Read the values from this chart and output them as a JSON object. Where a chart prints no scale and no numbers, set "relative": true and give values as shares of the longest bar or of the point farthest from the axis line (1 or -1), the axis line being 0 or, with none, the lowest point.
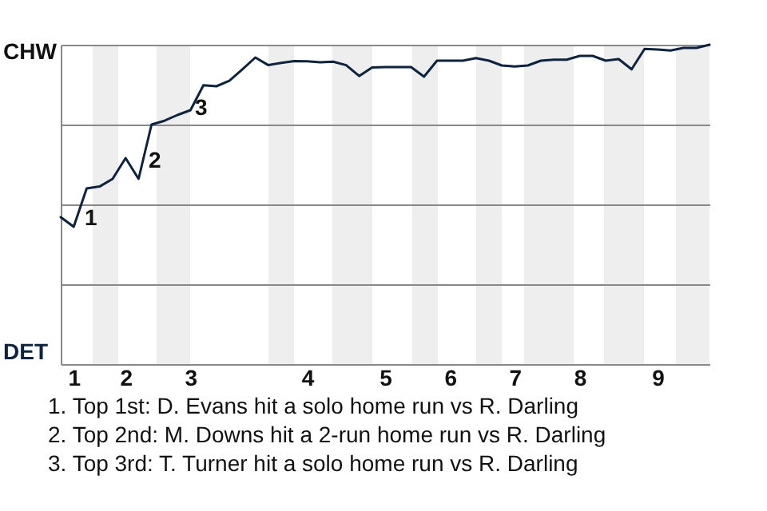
{
  "chart_data": {
    "type": "line",
    "relative": true,
    "categories": [
      null,
      "1",
      null,
      null,
      null,
      "2",
      null,
      null,
      null,
      null,
      "3",
      null,
      null,
      null,
      null,
      null,
      null,
      null,
      null,
      "4",
      null,
      null,
      null,
      null,
      null,
      "5",
      null,
      null,
      null,
      null,
      "6",
      null,
      null,
      null,
      null,
      "7",
      null,
      null,
      null,
      null,
      "8",
      null,
      null,
      null,
      null,
      null,
      "9",
      null,
      null,
      null,
      null
    ],
    "series": [
      {
        "color": "#0d2340",
        "values": [
          0.46,
          0.43,
          0.55,
          0.556,
          0.58,
          0.645,
          0.58,
          0.75,
          0.762,
          0.78,
          0.795,
          0.873,
          0.87,
          0.887,
          0.923,
          0.96,
          0.936,
          0.943,
          0.949,
          0.948,
          0.945,
          0.947,
          0.936,
          0.902,
          0.929,
          0.93,
          0.93,
          0.93,
          0.9,
          0.95,
          0.95,
          0.95,
          0.958,
          0.95,
          0.935,
          0.932,
          0.935,
          0.95,
          0.953,
          0.953,
          0.965,
          0.965,
          0.95,
          0.955,
          0.923,
          0.987,
          0.985,
          0.982,
          0.99,
          0.99,
          1
        ]
      }
    ],
    "grid": "y",
    "marker": "none",
    "line_style": "solid",
    "annotations": [
      "CHW",
      "DET",
      "1",
      "2",
      "3",
      "1. Top 1st: D. Evans hit a solo home run vs R. Darling",
      "2. Top 2nd: M. Downs hit a 2-run home run vs R. Darling",
      "3. Top 3rd: T. Turner hit a solo home run vs R. Darling"
    ]
  }
}
